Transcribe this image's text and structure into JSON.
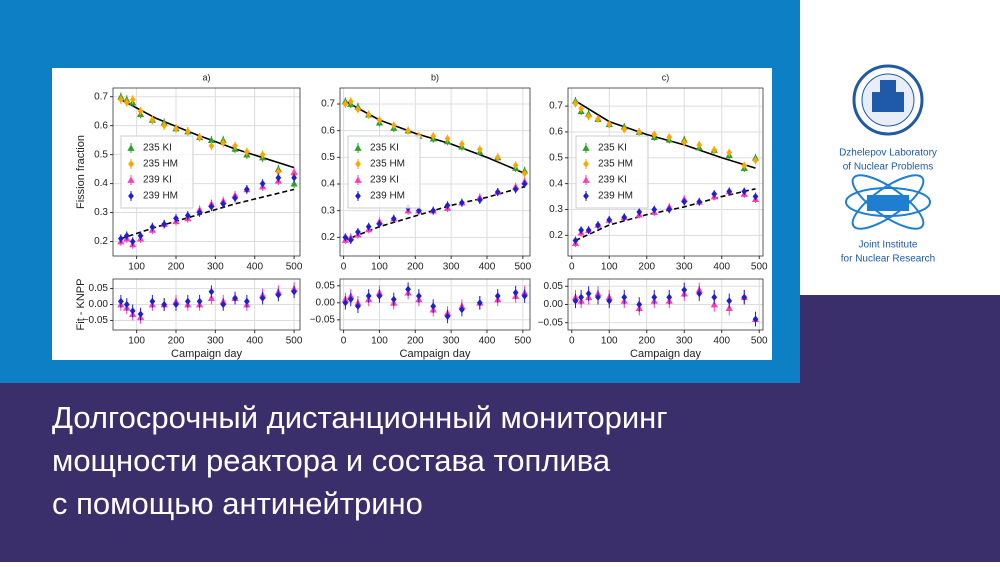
{
  "chart_data": [
    {
      "type": "scatter",
      "title": "a)",
      "ylabel": "Fission fraction",
      "xlim": [
        40,
        515
      ],
      "xticks": [
        100,
        200,
        300,
        400,
        500
      ],
      "ylim": [
        0.15,
        0.73
      ],
      "yticks": [
        0.2,
        0.3,
        0.4,
        0.5,
        0.6,
        0.7
      ],
      "grid": true,
      "legend": "center left",
      "x": [
        60,
        75,
        90,
        110,
        140,
        170,
        200,
        230,
        260,
        290,
        320,
        350,
        380,
        420,
        460,
        500
      ],
      "series": [
        {
          "name": "235 KI",
          "color": "#2ca02c",
          "marker": "^",
          "error": 0.015,
          "values": [
            0.7,
            0.69,
            0.68,
            0.64,
            0.62,
            0.61,
            0.59,
            0.58,
            0.56,
            0.55,
            0.55,
            0.52,
            0.5,
            0.49,
            0.45,
            0.4
          ]
        },
        {
          "name": "235 HM",
          "color": "#ffa500",
          "marker": "D",
          "error": 0.015,
          "values": [
            0.69,
            0.68,
            0.69,
            0.65,
            0.62,
            0.6,
            0.59,
            0.58,
            0.56,
            0.53,
            0.54,
            0.53,
            0.51,
            0.5,
            0.44,
            0.43
          ]
        },
        {
          "name": "239 KI",
          "color": "#ff3eb5",
          "marker": "^",
          "error": 0.015,
          "values": [
            0.2,
            0.21,
            0.19,
            0.21,
            0.24,
            0.26,
            0.27,
            0.28,
            0.31,
            0.33,
            0.34,
            0.36,
            0.38,
            0.39,
            0.41,
            0.44
          ]
        },
        {
          "name": "239 HM",
          "color": "#1f1fd0",
          "marker": "D",
          "error": 0.015,
          "values": [
            0.21,
            0.22,
            0.2,
            0.22,
            0.25,
            0.26,
            0.28,
            0.29,
            0.3,
            0.32,
            0.33,
            0.35,
            0.38,
            0.4,
            0.42,
            0.42
          ]
        }
      ],
      "fits": [
        {
          "style": "solid",
          "color": "#000000",
          "x": [
            60,
            150,
            250,
            350,
            500
          ],
          "values": [
            0.69,
            0.625,
            0.57,
            0.52,
            0.455
          ]
        },
        {
          "style": "dashed",
          "color": "#000000",
          "x": [
            60,
            150,
            250,
            350,
            500
          ],
          "values": [
            0.21,
            0.25,
            0.29,
            0.33,
            0.38
          ]
        }
      ]
    },
    {
      "type": "scatter",
      "ylabel": "Fit - KNPP",
      "xlabel": "Campaign day",
      "xlim": [
        40,
        515
      ],
      "xticks": [
        100,
        200,
        300,
        400,
        500
      ],
      "ylim": [
        -0.08,
        0.08
      ],
      "yticks": [
        0.05,
        {
          "value": 0,
          "label": "0.00"
        },
        {
          "value": -0.05,
          "label": "−0.05"
        }
      ],
      "grid": true,
      "x": [
        60,
        75,
        90,
        110,
        140,
        170,
        200,
        230,
        260,
        290,
        320,
        350,
        380,
        420,
        460,
        500
      ],
      "series": [
        {
          "color": "#ff3eb5",
          "marker": "^",
          "error": 0.02,
          "values": [
            0.0,
            -0.01,
            -0.03,
            -0.04,
            0.0,
            0.0,
            0.01,
            0.0,
            0.0,
            0.02,
            0.01,
            0.02,
            0.0,
            0.03,
            0.04,
            0.05
          ]
        },
        {
          "color": "#1f1fd0",
          "marker": "D",
          "error": 0.02,
          "values": [
            0.01,
            0.0,
            -0.02,
            -0.03,
            0.01,
            0.0,
            0.0,
            0.01,
            0.01,
            0.04,
            0.0,
            0.02,
            0.01,
            0.02,
            0.03,
            0.04
          ]
        }
      ]
    },
    {
      "type": "scatter",
      "title": "b)",
      "xlim": [
        -10,
        520
      ],
      "xticks": [
        0,
        100,
        200,
        300,
        400,
        500
      ],
      "ylim": [
        0.13,
        0.76
      ],
      "yticks": [
        0.2,
        0.3,
        0.4,
        0.5,
        0.6,
        0.7
      ],
      "grid": true,
      "legend": "center left",
      "x": [
        5,
        20,
        40,
        70,
        100,
        140,
        180,
        210,
        250,
        290,
        330,
        380,
        430,
        480,
        505
      ],
      "series": [
        {
          "name": "235 KI",
          "color": "#2ca02c",
          "marker": "^",
          "error": 0.015,
          "values": [
            0.71,
            0.7,
            0.69,
            0.66,
            0.63,
            0.61,
            0.6,
            0.58,
            0.57,
            0.56,
            0.54,
            0.52,
            0.5,
            0.46,
            0.45
          ]
        },
        {
          "name": "235 HM",
          "color": "#ffa500",
          "marker": "D",
          "error": 0.015,
          "values": [
            0.7,
            0.71,
            0.68,
            0.66,
            0.64,
            0.62,
            0.6,
            0.58,
            0.58,
            0.57,
            0.55,
            0.53,
            0.5,
            0.47,
            0.44
          ]
        },
        {
          "name": "239 KI",
          "color": "#ff3eb5",
          "marker": "^",
          "error": 0.015,
          "values": [
            0.19,
            0.2,
            0.21,
            0.23,
            0.26,
            0.27,
            0.3,
            0.3,
            0.3,
            0.31,
            0.33,
            0.35,
            0.37,
            0.39,
            0.41
          ]
        },
        {
          "name": "239 HM",
          "color": "#1f1fd0",
          "marker": "D",
          "error": 0.015,
          "values": [
            0.2,
            0.19,
            0.22,
            0.24,
            0.25,
            0.27,
            0.31,
            0.3,
            0.3,
            0.32,
            0.33,
            0.34,
            0.37,
            0.38,
            0.4
          ]
        }
      ],
      "fits": [
        {
          "style": "solid",
          "color": "#000000",
          "x": [
            5,
            100,
            200,
            300,
            400,
            505
          ],
          "values": [
            0.71,
            0.64,
            0.59,
            0.55,
            0.5,
            0.44
          ]
        },
        {
          "style": "dashed",
          "color": "#000000",
          "x": [
            5,
            100,
            200,
            300,
            400,
            505
          ],
          "values": [
            0.19,
            0.24,
            0.28,
            0.32,
            0.35,
            0.39
          ]
        }
      ]
    },
    {
      "type": "scatter",
      "xlabel": "Campaign day",
      "xlim": [
        -10,
        520
      ],
      "xticks": [
        0,
        100,
        200,
        300,
        400,
        500
      ],
      "ylim": [
        -0.08,
        0.07
      ],
      "yticks": [
        0.05,
        {
          "value": 0,
          "label": "0.00"
        },
        {
          "value": -0.05,
          "label": "−0.05"
        }
      ],
      "grid": true,
      "x": [
        5,
        20,
        40,
        70,
        100,
        140,
        180,
        210,
        250,
        290,
        330,
        380,
        430,
        480,
        505
      ],
      "series": [
        {
          "color": "#ff3eb5",
          "marker": "^",
          "error": 0.02,
          "values": [
            0.01,
            0.02,
            0.0,
            0.01,
            0.03,
            0.0,
            0.03,
            0.01,
            -0.02,
            -0.03,
            -0.01,
            0.0,
            0.01,
            0.02,
            0.03
          ]
        },
        {
          "color": "#1f1fd0",
          "marker": "D",
          "error": 0.02,
          "values": [
            0.0,
            0.01,
            -0.01,
            0.02,
            0.02,
            0.01,
            0.04,
            0.02,
            -0.01,
            -0.04,
            -0.02,
            0.0,
            0.02,
            0.03,
            0.02
          ]
        }
      ]
    },
    {
      "type": "scatter",
      "title": "c)",
      "xlim": [
        -10,
        510
      ],
      "xticks": [
        0,
        100,
        200,
        300,
        400,
        500
      ],
      "ylim": [
        0.12,
        0.77
      ],
      "yticks": [
        0.2,
        0.3,
        0.4,
        0.5,
        0.6,
        0.7
      ],
      "grid": true,
      "legend": "center left",
      "x": [
        10,
        25,
        45,
        70,
        100,
        140,
        180,
        220,
        260,
        300,
        340,
        380,
        420,
        460,
        490
      ],
      "series": [
        {
          "name": "235 KI",
          "color": "#2ca02c",
          "marker": "^",
          "error": 0.015,
          "values": [
            0.72,
            0.68,
            0.67,
            0.65,
            0.63,
            0.62,
            0.6,
            0.58,
            0.57,
            0.57,
            0.54,
            0.53,
            0.51,
            0.46,
            0.5
          ]
        },
        {
          "name": "235 HM",
          "color": "#ffa500",
          "marker": "D",
          "error": 0.015,
          "values": [
            0.71,
            0.69,
            0.66,
            0.65,
            0.63,
            0.61,
            0.6,
            0.59,
            0.58,
            0.56,
            0.55,
            0.53,
            0.52,
            0.47,
            0.49
          ]
        },
        {
          "name": "239 KI",
          "color": "#ff3eb5",
          "marker": "^",
          "error": 0.015,
          "values": [
            0.17,
            0.21,
            0.22,
            0.24,
            0.26,
            0.27,
            0.28,
            0.29,
            0.31,
            0.34,
            0.33,
            0.35,
            0.37,
            0.36,
            0.34
          ]
        },
        {
          "name": "239 HM",
          "color": "#1f1fd0",
          "marker": "D",
          "error": 0.015,
          "values": [
            0.18,
            0.22,
            0.22,
            0.24,
            0.26,
            0.27,
            0.29,
            0.3,
            0.3,
            0.33,
            0.33,
            0.36,
            0.37,
            0.37,
            0.35
          ]
        }
      ],
      "fits": [
        {
          "style": "solid",
          "color": "#000000",
          "x": [
            10,
            100,
            200,
            300,
            400,
            490
          ],
          "values": [
            0.72,
            0.64,
            0.59,
            0.55,
            0.5,
            0.46
          ]
        },
        {
          "style": "dashed",
          "color": "#000000",
          "x": [
            10,
            100,
            200,
            300,
            400,
            490
          ],
          "values": [
            0.18,
            0.24,
            0.28,
            0.31,
            0.35,
            0.38
          ]
        }
      ]
    },
    {
      "type": "scatter",
      "xlabel": "Campaign day",
      "xlim": [
        -10,
        510
      ],
      "xticks": [
        0,
        100,
        200,
        300,
        400,
        500
      ],
      "ylim": [
        -0.07,
        0.07
      ],
      "yticks": [
        0.05,
        {
          "value": 0,
          "label": "0.00"
        },
        {
          "value": -0.05,
          "label": "−0.05"
        }
      ],
      "grid": true,
      "x": [
        10,
        25,
        45,
        70,
        100,
        140,
        180,
        220,
        260,
        300,
        340,
        380,
        420,
        460,
        490
      ],
      "series": [
        {
          "color": "#ff3eb5",
          "marker": "^",
          "error": 0.02,
          "values": [
            0.02,
            0.01,
            0.02,
            0.03,
            0.02,
            0.01,
            -0.01,
            0.01,
            0.01,
            0.03,
            0.04,
            0.0,
            -0.01,
            0.02,
            -0.04
          ]
        },
        {
          "color": "#1f1fd0",
          "marker": "D",
          "error": 0.02,
          "values": [
            0.01,
            0.02,
            0.03,
            0.02,
            0.01,
            0.02,
            0.0,
            0.02,
            0.02,
            0.04,
            0.03,
            0.02,
            0.01,
            0.02,
            -0.04
          ]
        }
      ]
    }
  ],
  "labs": [
    [
      "Dzhelepov Laboratory",
      "of Nuclear Problems"
    ],
    [
      "Joint Institute",
      "for Nuclear Research"
    ]
  ],
  "caption": [
    "Долгосрочный дистанционный мониторинг",
    "мощности реактора и состава топлива",
    "с помощью антинейтрино"
  ]
}
